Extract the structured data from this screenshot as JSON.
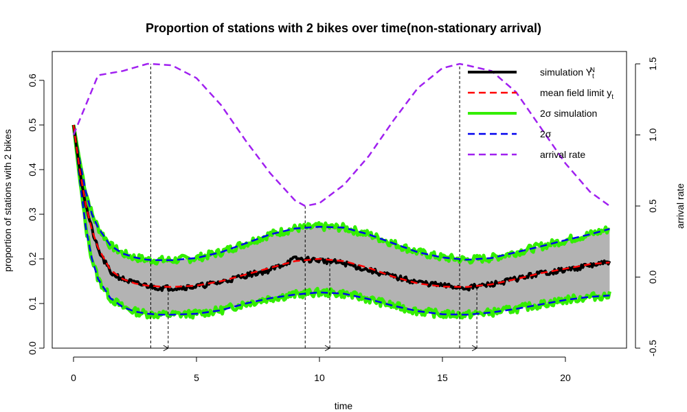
{
  "chart_data": {
    "type": "line",
    "title": "Proportion of stations with 2 bikes over time(non-stationary arrival)",
    "xlabel": "time",
    "ylabel": "proportion of stations with 2 bikes",
    "y2label": "arrival rate",
    "xlim": [
      0,
      22
    ],
    "ylim": [
      0,
      0.66
    ],
    "y2lim": [
      -0.5,
      1.5
    ],
    "xticks": [
      0,
      5,
      10,
      15,
      20
    ],
    "yticks": [
      "0.0",
      "0.1",
      "0.2",
      "0.3",
      "0.4",
      "0.5",
      "0.6"
    ],
    "y2ticks": [
      "-0.5",
      "0.0",
      "0.5",
      "1.0",
      "1.5"
    ],
    "legend_position": "top-right",
    "legend": [
      {
        "label": "simulation Y",
        "sup": "N",
        "sub": "t",
        "color": "#000000",
        "dash": "solid",
        "width": 4
      },
      {
        "label": "mean field limit y",
        "sub": "t",
        "color": "#ff0000",
        "dash": "dashed",
        "width": 2.5
      },
      {
        "label": "2σ simulation",
        "color": "#33ee00",
        "dash": "solid",
        "width": 4
      },
      {
        "label": "2σ",
        "color": "#0000ee",
        "dash": "dashed",
        "width": 2.5
      },
      {
        "label": "arrival rate",
        "color": "#a020f0",
        "dash": "dashed",
        "width": 2.5
      }
    ],
    "series": [
      {
        "name": "mean field limit y_t",
        "axis": "left",
        "color": "#ff0000",
        "x": [
          0,
          0.25,
          0.5,
          0.75,
          1,
          1.5,
          2,
          2.5,
          3,
          3.5,
          4,
          5,
          6,
          7,
          8,
          9,
          10,
          11,
          12,
          13,
          14,
          15,
          16,
          17,
          18,
          19,
          20,
          21,
          21.8
        ],
        "y": [
          0.5,
          0.4,
          0.32,
          0.265,
          0.225,
          0.175,
          0.155,
          0.145,
          0.14,
          0.138,
          0.137,
          0.14,
          0.15,
          0.165,
          0.18,
          0.195,
          0.2,
          0.195,
          0.18,
          0.16,
          0.145,
          0.138,
          0.137,
          0.143,
          0.155,
          0.168,
          0.178,
          0.188,
          0.192
        ]
      },
      {
        "name": "2σ upper",
        "axis": "left",
        "color": "#0000ee",
        "x": [
          0,
          0.25,
          0.5,
          0.75,
          1,
          1.5,
          2,
          2.5,
          3,
          3.5,
          4,
          5,
          6,
          7,
          8,
          9,
          10,
          11,
          12,
          13,
          14,
          15,
          16,
          17,
          18,
          19,
          20,
          21,
          21.8
        ],
        "y": [
          0.5,
          0.42,
          0.35,
          0.3,
          0.27,
          0.23,
          0.212,
          0.203,
          0.198,
          0.197,
          0.197,
          0.202,
          0.215,
          0.235,
          0.255,
          0.268,
          0.272,
          0.27,
          0.255,
          0.235,
          0.215,
          0.203,
          0.198,
          0.202,
          0.215,
          0.228,
          0.242,
          0.255,
          0.267
        ]
      },
      {
        "name": "2σ lower",
        "axis": "left",
        "color": "#0000ee",
        "x": [
          0,
          0.25,
          0.5,
          0.75,
          1,
          1.5,
          2,
          2.5,
          3,
          3.5,
          4,
          5,
          6,
          7,
          8,
          9,
          10,
          11,
          12,
          13,
          14,
          15,
          16,
          17,
          18,
          19,
          20,
          21,
          21.8
        ],
        "y": [
          0.5,
          0.38,
          0.27,
          0.2,
          0.155,
          0.112,
          0.092,
          0.082,
          0.077,
          0.075,
          0.075,
          0.077,
          0.085,
          0.1,
          0.112,
          0.12,
          0.125,
          0.122,
          0.11,
          0.095,
          0.083,
          0.076,
          0.075,
          0.08,
          0.088,
          0.098,
          0.108,
          0.115,
          0.118
        ]
      },
      {
        "name": "simulation Y_t^N",
        "axis": "left",
        "color": "#000000",
        "x": [
          0,
          0.25,
          0.5,
          0.75,
          1,
          1.5,
          2,
          2.5,
          3,
          3.5,
          4,
          5,
          6,
          7,
          8,
          9,
          10,
          11,
          12,
          13,
          14,
          15,
          16,
          17,
          18,
          19,
          20,
          21,
          21.8
        ],
        "y": [
          0.5,
          0.4,
          0.32,
          0.265,
          0.22,
          0.17,
          0.155,
          0.145,
          0.14,
          0.135,
          0.135,
          0.138,
          0.148,
          0.163,
          0.175,
          0.2,
          0.197,
          0.19,
          0.175,
          0.16,
          0.148,
          0.14,
          0.135,
          0.143,
          0.155,
          0.168,
          0.175,
          0.185,
          0.192
        ]
      },
      {
        "name": "arrival rate",
        "axis": "right",
        "color": "#a020f0",
        "x": [
          0,
          1,
          2,
          3,
          3.14,
          4,
          5,
          6,
          7,
          8,
          9,
          9.42,
          10,
          11,
          12,
          13,
          14,
          15,
          15.7,
          16,
          17,
          18,
          19,
          20,
          21,
          21.8
        ],
        "y": [
          1.0,
          1.42,
          1.45,
          1.5,
          1.5,
          1.49,
          1.4,
          1.21,
          0.96,
          0.73,
          0.54,
          0.5,
          0.52,
          0.65,
          0.85,
          1.1,
          1.33,
          1.47,
          1.5,
          1.49,
          1.45,
          1.3,
          1.05,
          0.8,
          0.6,
          0.5
        ]
      }
    ],
    "annotations": [
      {
        "type": "vertical-dashed",
        "x": 3.14
      },
      {
        "type": "vertical-dashed",
        "x": 3.85
      },
      {
        "type": "vertical-dashed",
        "x": 9.42
      },
      {
        "type": "vertical-dashed",
        "x": 10.42
      },
      {
        "type": "vertical-dashed",
        "x": 15.7
      },
      {
        "type": "vertical-dashed",
        "x": 16.4
      },
      {
        "type": "arrow",
        "from": 3.14,
        "to": 3.85
      },
      {
        "type": "arrow",
        "from": 9.42,
        "to": 10.42
      },
      {
        "type": "arrow",
        "from": 15.7,
        "to": 16.4
      }
    ]
  }
}
